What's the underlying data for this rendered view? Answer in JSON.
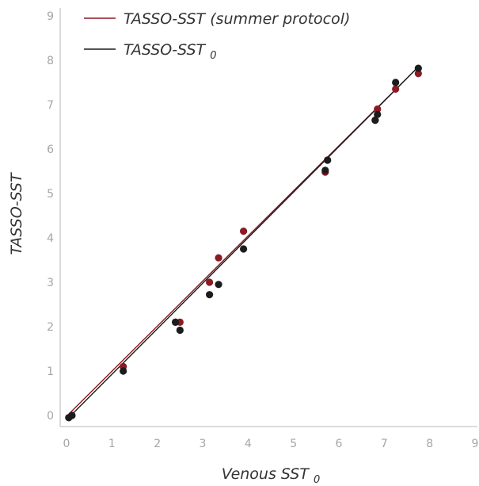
{
  "chart_data": {
    "type": "scatter",
    "title": "",
    "xlabel": "Venous SST",
    "xlabel_sub": "0",
    "ylabel": "TASSO-SST",
    "xlim": [
      0,
      9
    ],
    "ylim": [
      0,
      9
    ],
    "x_ticks": [
      "0",
      "1",
      "2",
      "3",
      "4",
      "5",
      "6",
      "7",
      "8",
      "9"
    ],
    "y_ticks": [
      "0",
      "1",
      "2",
      "3",
      "4",
      "5",
      "6",
      "7",
      "8",
      "9"
    ],
    "grid": false,
    "legend_position": "top-left",
    "series": [
      {
        "name": "TASSO-SST (summer protocol)",
        "color": "#8b1a24",
        "points": [
          [
            0.05,
            -0.05
          ],
          [
            0.12,
            0.0
          ],
          [
            1.25,
            1.1
          ],
          [
            2.4,
            2.1
          ],
          [
            2.5,
            2.1
          ],
          [
            3.15,
            3.0
          ],
          [
            3.35,
            3.55
          ],
          [
            3.9,
            4.15
          ],
          [
            5.7,
            5.48
          ],
          [
            5.75,
            5.75
          ],
          [
            6.8,
            6.65
          ],
          [
            6.85,
            6.9
          ],
          [
            7.25,
            7.35
          ],
          [
            7.75,
            7.7
          ]
        ],
        "fit": [
          [
            0.0,
            -0.02
          ],
          [
            7.75,
            7.85
          ]
        ]
      },
      {
        "name": "TASSO-SST",
        "name_sub": "0",
        "color": "#1c1c1c",
        "points": [
          [
            0.05,
            -0.05
          ],
          [
            0.12,
            0.0
          ],
          [
            1.25,
            1.0
          ],
          [
            2.4,
            2.1
          ],
          [
            2.5,
            1.92
          ],
          [
            3.15,
            2.72
          ],
          [
            3.35,
            2.95
          ],
          [
            3.9,
            3.75
          ],
          [
            5.7,
            5.52
          ],
          [
            5.75,
            5.75
          ],
          [
            6.8,
            6.65
          ],
          [
            6.85,
            6.78
          ],
          [
            7.25,
            7.5
          ],
          [
            7.75,
            7.82
          ]
        ],
        "fit": [
          [
            0.0,
            -0.1
          ],
          [
            7.75,
            7.85
          ]
        ]
      }
    ]
  }
}
